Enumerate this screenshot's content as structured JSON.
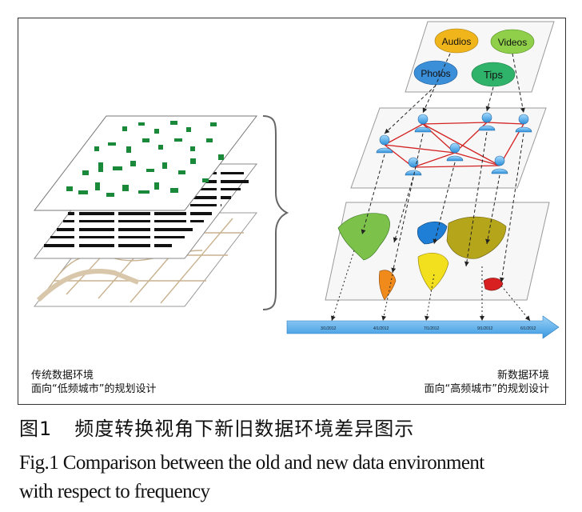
{
  "left_caption": {
    "line1": "传统数据环境",
    "line2": "面向“低频城市”的规划设计"
  },
  "right_caption": {
    "line1": "新数据环境",
    "line2": "面向“高频城市”的规划设计"
  },
  "media_labels": {
    "audios": "Audios",
    "videos": "Videos",
    "photos": "Photos",
    "tips": "Tips"
  },
  "timeline_labels": [
    "3/1/2012",
    "4/1/2012",
    "7/1/2012",
    "9/1/2012",
    "6/1/2012"
  ],
  "figure_caption": {
    "number": "图1",
    "title_cn": "频度转换视角下新旧数据环境差异图示",
    "title_en_line1": "Fig.1  Comparison between the old and new data environment",
    "title_en_line2": "with respect to frequency"
  },
  "colors": {
    "green_patch": "#1a8a3a",
    "bubble_audios": "#f1b51c",
    "bubble_videos": "#8fcf4a",
    "bubble_photos": "#3b8ed8",
    "bubble_tips": "#2fb36a",
    "network_line": "#d32222",
    "timeline": "#5aaef0",
    "street": "#c9b28f",
    "america": "#7cc24a",
    "south_america": "#f08a1a",
    "europe": "#1f7fd6",
    "africa": "#f2e01e",
    "asia": "#b5a51a",
    "oceania": "#d92020"
  }
}
